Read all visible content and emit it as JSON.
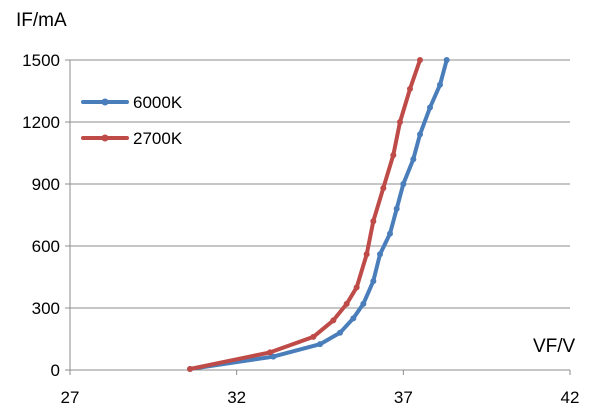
{
  "chart_data": {
    "type": "line",
    "title": "",
    "xlabel": "VF/V",
    "ylabel": "IF/mA",
    "xlim": [
      27,
      42
    ],
    "ylim": [
      0,
      1500
    ],
    "x_ticks": [
      27,
      32,
      37,
      42
    ],
    "y_ticks": [
      0,
      300,
      600,
      900,
      1200,
      1500
    ],
    "x_tick_labels": [
      "27",
      "32",
      "37",
      "42"
    ],
    "y_tick_labels": [
      "0",
      "300",
      "600",
      "900",
      "1200",
      "1500"
    ],
    "grid": "horizontal",
    "legend_position": "top-left",
    "series": [
      {
        "name": "6000K",
        "color": "#4a7ebb",
        "points": [
          [
            30.6,
            5
          ],
          [
            33.1,
            65
          ],
          [
            34.5,
            125
          ],
          [
            35.1,
            180
          ],
          [
            35.5,
            250
          ],
          [
            35.8,
            320
          ],
          [
            36.1,
            430
          ],
          [
            36.3,
            560
          ],
          [
            36.6,
            660
          ],
          [
            36.8,
            780
          ],
          [
            37.0,
            900
          ],
          [
            37.3,
            1020
          ],
          [
            37.5,
            1140
          ],
          [
            37.8,
            1270
          ],
          [
            38.1,
            1380
          ],
          [
            38.3,
            1500
          ]
        ]
      },
      {
        "name": "2700K",
        "color": "#be4b48",
        "points": [
          [
            30.6,
            5
          ],
          [
            33.0,
            85
          ],
          [
            34.3,
            160
          ],
          [
            34.9,
            240
          ],
          [
            35.3,
            320
          ],
          [
            35.6,
            400
          ],
          [
            35.9,
            560
          ],
          [
            36.1,
            720
          ],
          [
            36.4,
            880
          ],
          [
            36.7,
            1040
          ],
          [
            36.9,
            1200
          ],
          [
            37.2,
            1360
          ],
          [
            37.5,
            1500
          ]
        ]
      }
    ]
  }
}
